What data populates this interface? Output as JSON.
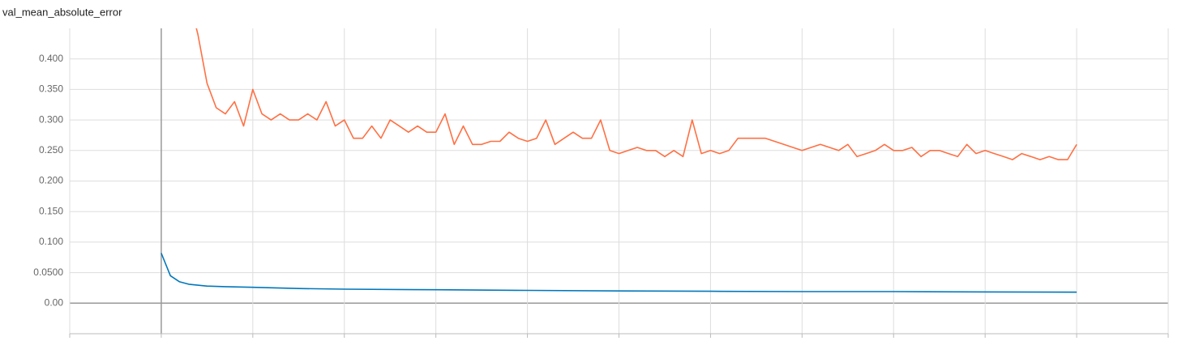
{
  "chart_data": {
    "type": "line",
    "title": "val_mean_absolute_error",
    "xlim": [
      -1,
      11
    ],
    "xticks": [
      -1,
      0,
      1,
      2,
      3,
      4,
      5,
      6,
      7,
      8,
      9,
      10,
      11
    ],
    "ylim": [
      -0.05,
      0.45
    ],
    "yticks": [
      {
        "value": 0,
        "label": "0.00"
      },
      {
        "value": 0.05,
        "label": "0.0500"
      },
      {
        "value": 0.1,
        "label": "0.100"
      },
      {
        "value": 0.15,
        "label": "0.150"
      },
      {
        "value": 0.2,
        "label": "0.200"
      },
      {
        "value": 0.25,
        "label": "0.250"
      },
      {
        "value": 0.3,
        "label": "0.300"
      },
      {
        "value": 0.35,
        "label": "0.350"
      },
      {
        "value": 0.4,
        "label": "0.400"
      }
    ],
    "grid": true,
    "series": [
      {
        "color": "#ff7043",
        "x": [
          0.3,
          0.4,
          0.5,
          0.6,
          0.7,
          0.8,
          0.9,
          1.0,
          1.1,
          1.2,
          1.3,
          1.4,
          1.5,
          1.6,
          1.7,
          1.8,
          1.9,
          2.0,
          2.1,
          2.2,
          2.3,
          2.4,
          2.5,
          2.6,
          2.7,
          2.8,
          2.9,
          3.0,
          3.1,
          3.2,
          3.3,
          3.4,
          3.5,
          3.6,
          3.7,
          3.8,
          3.9,
          4.0,
          4.1,
          4.2,
          4.3,
          4.4,
          4.5,
          4.6,
          4.7,
          4.8,
          4.9,
          5.0,
          5.1,
          5.2,
          5.3,
          5.4,
          5.5,
          5.6,
          5.7,
          5.8,
          5.9,
          6.0,
          6.1,
          6.2,
          6.3,
          6.4,
          6.5,
          6.6,
          6.7,
          6.8,
          6.9,
          7.0,
          7.1,
          7.2,
          7.3,
          7.4,
          7.5,
          7.6,
          7.7,
          7.8,
          7.9,
          8.0,
          8.1,
          8.2,
          8.3,
          8.4,
          8.5,
          8.6,
          8.7,
          8.8,
          8.9,
          9.0,
          9.1,
          9.2,
          9.3,
          9.4,
          9.5,
          9.6,
          9.7,
          9.8,
          9.9,
          10.0
        ],
        "values": [
          0.5,
          0.44,
          0.36,
          0.32,
          0.31,
          0.33,
          0.29,
          0.35,
          0.31,
          0.3,
          0.31,
          0.3,
          0.3,
          0.31,
          0.3,
          0.33,
          0.29,
          0.3,
          0.27,
          0.27,
          0.29,
          0.27,
          0.3,
          0.29,
          0.28,
          0.29,
          0.28,
          0.28,
          0.31,
          0.26,
          0.29,
          0.26,
          0.26,
          0.265,
          0.265,
          0.28,
          0.27,
          0.265,
          0.27,
          0.3,
          0.26,
          0.27,
          0.28,
          0.27,
          0.27,
          0.3,
          0.25,
          0.245,
          0.25,
          0.255,
          0.25,
          0.25,
          0.24,
          0.25,
          0.24,
          0.3,
          0.245,
          0.25,
          0.245,
          0.25,
          0.27,
          0.27,
          0.27,
          0.27,
          0.265,
          0.26,
          0.255,
          0.25,
          0.255,
          0.26,
          0.255,
          0.25,
          0.26,
          0.24,
          0.245,
          0.25,
          0.26,
          0.25,
          0.25,
          0.255,
          0.24,
          0.25,
          0.25,
          0.245,
          0.24,
          0.26,
          0.245,
          0.25,
          0.245,
          0.24,
          0.235,
          0.245,
          0.24,
          0.235,
          0.24,
          0.235,
          0.235,
          0.26
        ]
      },
      {
        "color": "#0077bb",
        "x": [
          0,
          0.1,
          0.2,
          0.3,
          0.5,
          0.7,
          1,
          1.5,
          2,
          3,
          4,
          5,
          6,
          7,
          8,
          9,
          10
        ],
        "values": [
          0.082,
          0.045,
          0.035,
          0.031,
          0.028,
          0.027,
          0.026,
          0.024,
          0.023,
          0.022,
          0.021,
          0.02,
          0.0195,
          0.019,
          0.019,
          0.0185,
          0.018
        ]
      }
    ]
  }
}
